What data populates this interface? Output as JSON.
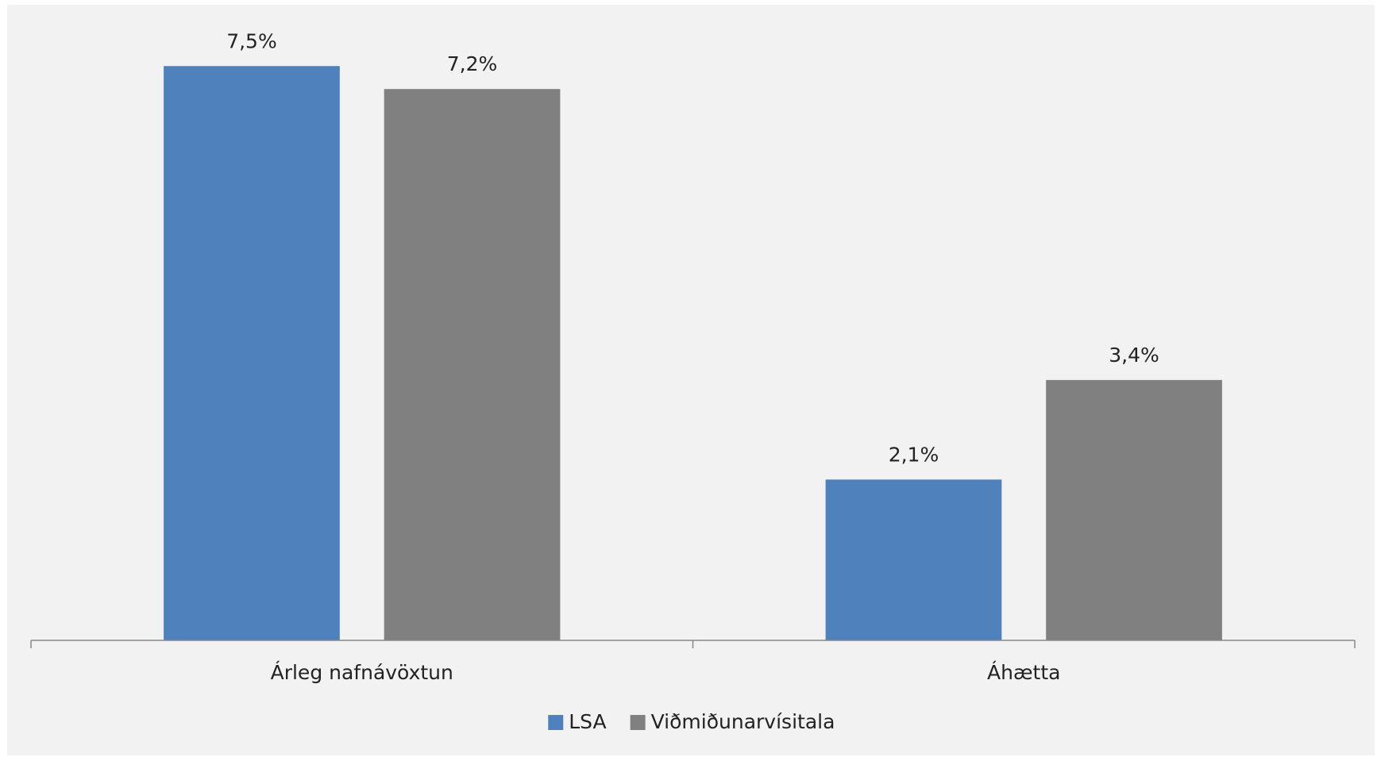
{
  "chart_data": {
    "type": "bar",
    "categories": [
      "Árleg nafnávöxtun",
      "Áhætta"
    ],
    "series": [
      {
        "name": "LSA",
        "color": "#4f81bd",
        "values": [
          7.5,
          2.1
        ],
        "value_labels": [
          "7,5%",
          "2,1%"
        ]
      },
      {
        "name": "Viðmiðunarvísitala",
        "color": "#808080",
        "values": [
          7.2,
          3.4
        ],
        "value_labels": [
          "7,2%",
          "3,4%"
        ]
      }
    ],
    "ylim": [
      0,
      8
    ],
    "legend": "bottom"
  }
}
